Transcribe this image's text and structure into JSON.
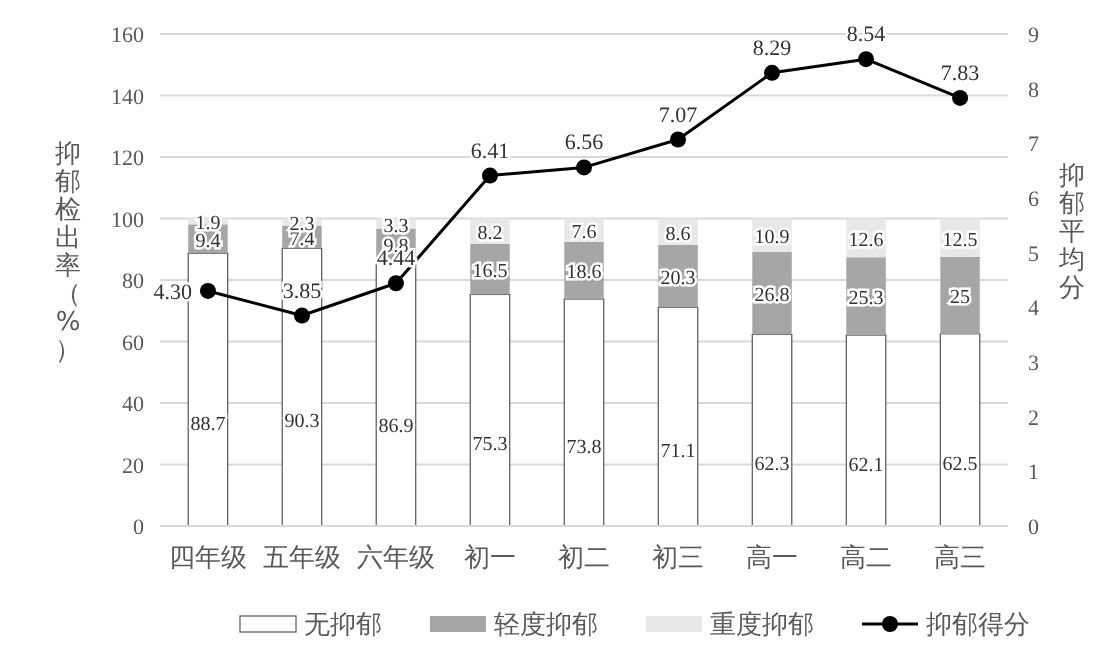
{
  "chart_data": {
    "type": "bar",
    "stacked": true,
    "categories": [
      "四年级",
      "五年级",
      "六年级",
      "初一",
      "初二",
      "初三",
      "高一",
      "高二",
      "高三"
    ],
    "ylabel": "抑郁检出率（%）",
    "y2label": "抑郁平均分",
    "ylim": [
      0,
      160
    ],
    "yticks": [
      0,
      20,
      40,
      60,
      80,
      100,
      120,
      140,
      160
    ],
    "y2lim": [
      0,
      9
    ],
    "y2ticks": [
      0,
      1,
      2,
      3,
      4,
      5,
      6,
      7,
      8,
      9
    ],
    "grid": "y",
    "legend": "bottom",
    "data_labels": true,
    "marker": "circle",
    "series": [
      {
        "name": "无抑郁",
        "color": "#ffffff",
        "values": [
          88.7,
          90.3,
          86.9,
          75.3,
          73.8,
          71.1,
          62.3,
          62.1,
          62.5
        ]
      },
      {
        "name": "轻度抑郁",
        "color": "#a6a6a6",
        "values": [
          9.4,
          7.4,
          9.8,
          16.5,
          18.6,
          20.3,
          26.8,
          25.3,
          25
        ]
      },
      {
        "name": "重度抑郁",
        "color": "#e8e8e8",
        "values": [
          1.9,
          2.3,
          3.3,
          8.2,
          7.6,
          8.6,
          10.9,
          12.6,
          12.5
        ]
      },
      {
        "name": "抑郁得分",
        "type": "line",
        "axis": "y2",
        "color": "#000000",
        "values": [
          4.3,
          3.85,
          4.44,
          6.41,
          6.56,
          7.07,
          8.29,
          8.54,
          7.83
        ],
        "value_labels": [
          "4.30",
          "3.85",
          "4.44",
          "6.41",
          "6.56",
          "7.07",
          "8.29",
          "8.54",
          "7.83"
        ]
      }
    ]
  }
}
